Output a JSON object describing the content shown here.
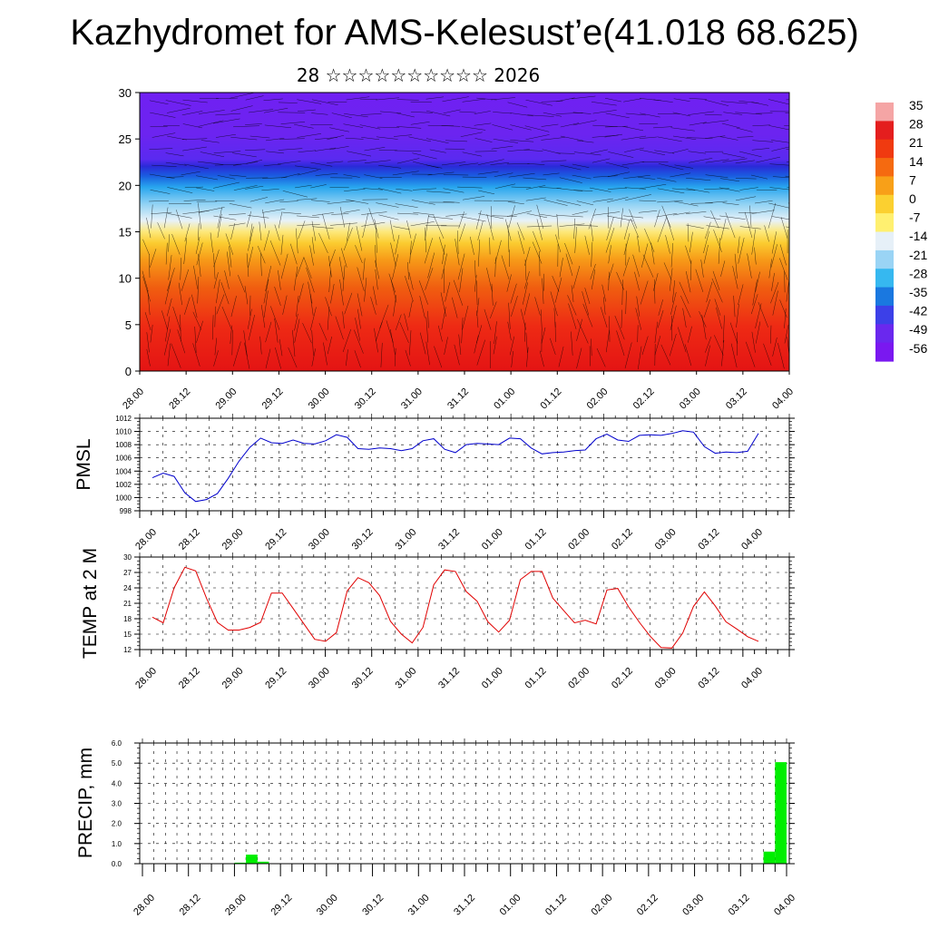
{
  "title": "Kazhydromet for AMS-Kelesust’e(41.018 68.625)",
  "subtitle": "28 ☆☆☆☆☆☆☆☆☆☆ 2026",
  "time_ticks": [
    "28.00",
    "28.12",
    "29.00",
    "29.12",
    "30.00",
    "30.12",
    "31.00",
    "31.12",
    "01.00",
    "01.12",
    "02.00",
    "02.12",
    "03.00",
    "03.12",
    "04.00"
  ],
  "chart_data": [
    {
      "type": "heatmap",
      "name": "vertical-section",
      "xlabel": "",
      "ylabel": "",
      "ylim": [
        0,
        30
      ],
      "yticks": [
        0,
        5,
        10,
        15,
        20,
        25,
        30
      ],
      "colorbar": {
        "labels": [
          "35",
          "28",
          "21",
          "14",
          "7",
          "0",
          "-7",
          "-14",
          "-21",
          "-28",
          "-35",
          "-42",
          "-49",
          "-56"
        ],
        "colors": [
          "#f5a5a5",
          "#e41e1e",
          "#f03a10",
          "#f56a10",
          "#f8a018",
          "#fbd030",
          "#fff070",
          "#e6f0f8",
          "#9ad4f5",
          "#36b8f0",
          "#1a78e0",
          "#3c40e8",
          "#6a28ee",
          "#7a18f0"
        ]
      },
      "wind_barbs": true
    },
    {
      "type": "line",
      "name": "pmsl",
      "ylabel": "PMSL",
      "ylim": [
        998,
        1012
      ],
      "yticks": [
        998,
        1000,
        1002,
        1004,
        1006,
        1008,
        1010,
        1012
      ],
      "color": "#0000cc",
      "x_hours": [
        0,
        3,
        6,
        9,
        12,
        15,
        18,
        21,
        24,
        27,
        30,
        33,
        36,
        39,
        42,
        45,
        48,
        51,
        54,
        57,
        60,
        63,
        66,
        69,
        72,
        75,
        78,
        81,
        84,
        87,
        90,
        93,
        96,
        99,
        102,
        105,
        108,
        111,
        114,
        117,
        120,
        123,
        126,
        129,
        132,
        135,
        138,
        141,
        144,
        147,
        150,
        153,
        156,
        159,
        162,
        165,
        168
      ],
      "values": [
        1003,
        1003.7,
        1003.2,
        1000.7,
        999.4,
        999.7,
        1000.6,
        1002.9,
        1005.5,
        1007.6,
        1009.0,
        1008.3,
        1008.2,
        1008.7,
        1008.2,
        1008.1,
        1008.6,
        1009.5,
        1009.1,
        1007.4,
        1007.3,
        1007.5,
        1007.4,
        1007.1,
        1007.4,
        1008.6,
        1008.9,
        1007.3,
        1006.8,
        1008.0,
        1008.2,
        1008.1,
        1008.0,
        1009.0,
        1008.9,
        1007.5,
        1006.6,
        1006.8,
        1006.9,
        1007.1,
        1007.2,
        1008.9,
        1009.6,
        1008.7,
        1008.5,
        1009.4,
        1009.5,
        1009.4,
        1009.7,
        1010.1,
        1009.9,
        1007.7,
        1006.7,
        1006.9,
        1006.8,
        1007.0,
        1009.7
      ]
    },
    {
      "type": "line",
      "name": "temp-2m",
      "ylabel": "TEMP at 2 M",
      "ylim": [
        12,
        30
      ],
      "yticks": [
        12,
        15,
        18,
        21,
        24,
        27,
        30
      ],
      "color": "#e00000",
      "x_hours": [
        0,
        3,
        6,
        9,
        12,
        15,
        18,
        21,
        24,
        27,
        30,
        33,
        36,
        39,
        42,
        45,
        48,
        51,
        54,
        57,
        60,
        63,
        66,
        69,
        72,
        75,
        78,
        81,
        84,
        87,
        90,
        93,
        96,
        99,
        102,
        105,
        108,
        111,
        114,
        117,
        120,
        123,
        126,
        129,
        132,
        135,
        138,
        141,
        144,
        147,
        150,
        153,
        156,
        159,
        162,
        165,
        168
      ],
      "values": [
        18.3,
        17.2,
        24,
        28,
        27.3,
        22,
        17.3,
        15.8,
        15.8,
        16.3,
        17.3,
        23,
        23,
        20,
        17,
        14,
        13.6,
        15.3,
        23.4,
        26,
        25,
        22.5,
        17.5,
        15,
        13.3,
        16.3,
        24.6,
        27.5,
        27.2,
        23.3,
        21.4,
        17.4,
        15.4,
        17.7,
        25.6,
        27.2,
        27.2,
        22,
        19.6,
        17.2,
        17.7,
        17,
        23.6,
        23.9,
        20.3,
        17.3,
        14.6,
        12.4,
        12.3,
        15.2,
        20.4,
        23.2,
        20.5,
        17.4,
        16,
        14.5,
        13.6
      ]
    },
    {
      "type": "bar",
      "name": "precip",
      "ylabel": "PRECIP, mm",
      "ylim": [
        0,
        6
      ],
      "yticks": [
        "0.0",
        "1.0",
        "2.0",
        "3.0",
        "4.0",
        "5.0",
        "6.0"
      ],
      "color": "#00ee00",
      "bars": [
        {
          "start_hour": 24,
          "end_hour": 27,
          "value": 0.05
        },
        {
          "start_hour": 27,
          "end_hour": 30,
          "value": 0.45
        },
        {
          "start_hour": 30,
          "end_hour": 33,
          "value": 0.1
        },
        {
          "start_hour": 162,
          "end_hour": 165,
          "value": 0.6
        },
        {
          "start_hour": 165,
          "end_hour": 168,
          "value": 5.05
        }
      ]
    }
  ]
}
